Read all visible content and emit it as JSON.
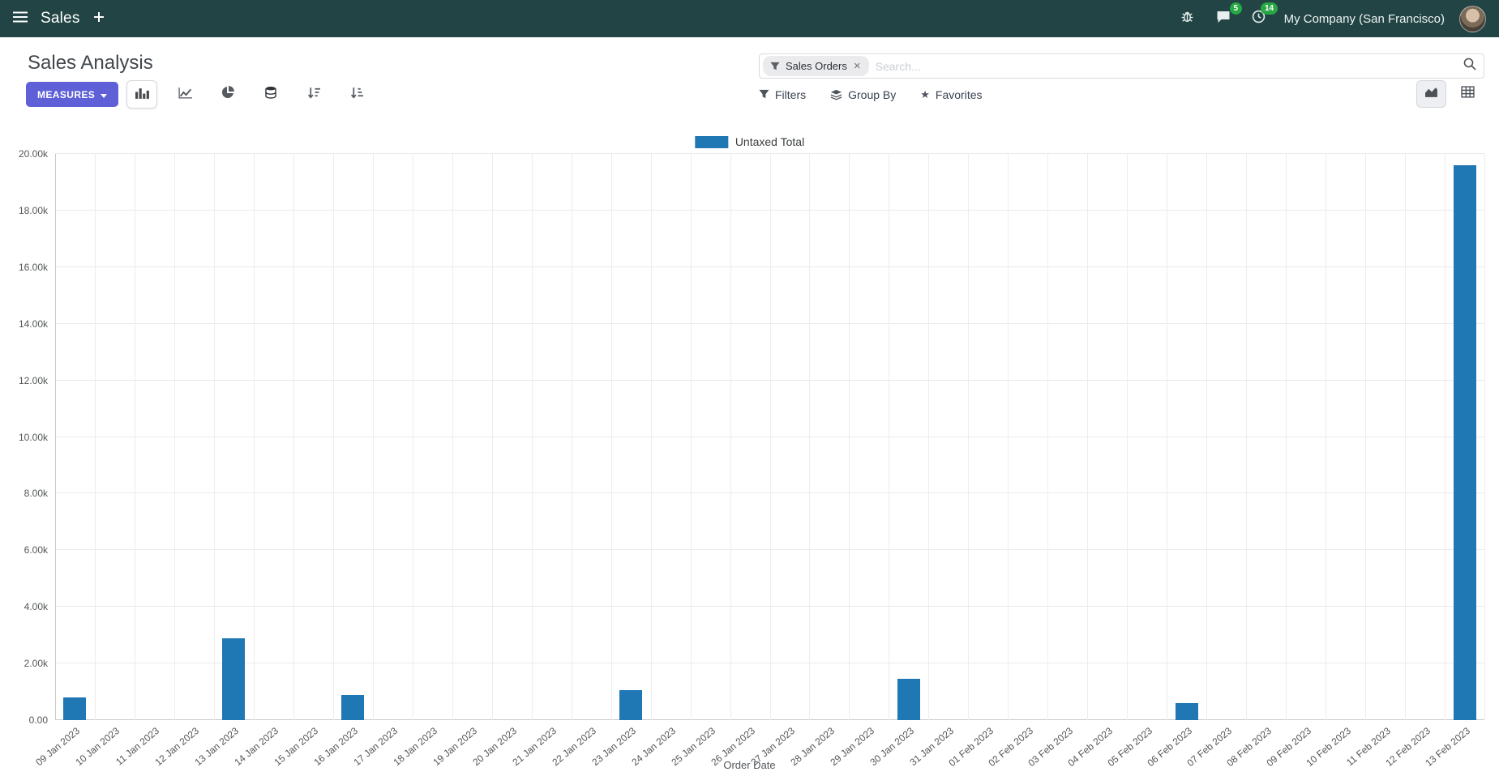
{
  "colors": {
    "nav_bg": "#224444",
    "primary": "#5f5fd7",
    "series": "#1f77b4",
    "badge": "#28a745"
  },
  "icons": {
    "menu": "hamburger",
    "new": "plus",
    "debug": "bug",
    "messages": "chat-bubble",
    "activities": "clock",
    "facet": "funnel",
    "search": "magnifier",
    "measures_caret": "caret-down",
    "view_bar": "bar-chart",
    "view_line": "line-chart",
    "view_pie": "pie-chart",
    "stacked": "database-stack",
    "sort_desc": "sort-amount-desc",
    "sort_asc": "sort-amount-asc",
    "filters": "funnel",
    "group_by": "layers",
    "favorites": "star",
    "switch_graph": "area-chart",
    "switch_pivot": "table-grid"
  },
  "nav": {
    "app_title": "Sales",
    "messages_badge": "5",
    "activities_badge": "14",
    "company": "My Company (San Francisco)"
  },
  "control_panel": {
    "title": "Sales Analysis",
    "measures_label": "MEASURES",
    "search": {
      "facet_label": "Sales Orders",
      "facet_remove": "×",
      "placeholder": "Search..."
    },
    "filters_label": "Filters",
    "group_by_label": "Group By",
    "favorites_label": "Favorites"
  },
  "chart_data": {
    "type": "bar",
    "title": "",
    "legend": "Untaxed Total",
    "legend_position": "top",
    "grid": true,
    "xlabel": "Order Date",
    "ylabel": "",
    "ylim": [
      0,
      20000
    ],
    "ytick_step": 2000,
    "ytick_labels": [
      "0.00",
      "2.00k",
      "4.00k",
      "6.00k",
      "8.00k",
      "10.00k",
      "12.00k",
      "14.00k",
      "16.00k",
      "18.00k",
      "20.00k"
    ],
    "categories": [
      "09 Jan 2023",
      "10 Jan 2023",
      "11 Jan 2023",
      "12 Jan 2023",
      "13 Jan 2023",
      "14 Jan 2023",
      "15 Jan 2023",
      "16 Jan 2023",
      "17 Jan 2023",
      "18 Jan 2023",
      "19 Jan 2023",
      "20 Jan 2023",
      "21 Jan 2023",
      "22 Jan 2023",
      "23 Jan 2023",
      "24 Jan 2023",
      "25 Jan 2023",
      "26 Jan 2023",
      "27 Jan 2023",
      "28 Jan 2023",
      "29 Jan 2023",
      "30 Jan 2023",
      "31 Jan 2023",
      "01 Feb 2023",
      "02 Feb 2023",
      "03 Feb 2023",
      "04 Feb 2023",
      "05 Feb 2023",
      "06 Feb 2023",
      "07 Feb 2023",
      "08 Feb 2023",
      "09 Feb 2023",
      "10 Feb 2023",
      "11 Feb 2023",
      "12 Feb 2023",
      "13 Feb 2023"
    ],
    "values": [
      800,
      0,
      0,
      0,
      2900,
      0,
      0,
      900,
      0,
      0,
      0,
      0,
      0,
      0,
      1050,
      0,
      0,
      0,
      0,
      0,
      0,
      1450,
      0,
      0,
      0,
      0,
      0,
      0,
      600,
      0,
      0,
      0,
      0,
      0,
      0,
      19600
    ]
  }
}
